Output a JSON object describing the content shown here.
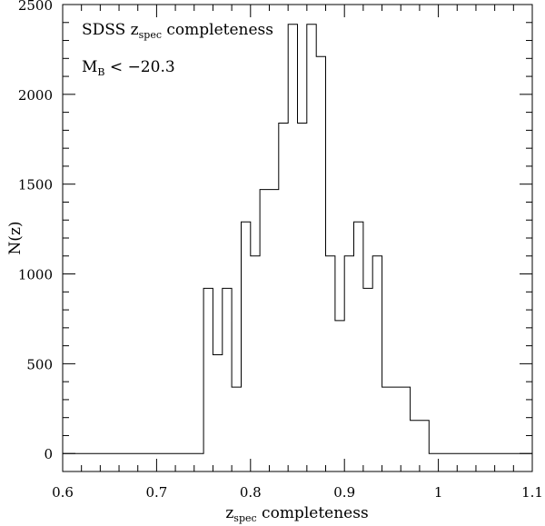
{
  "chart_data": {
    "type": "histogram",
    "xlabel": {
      "main": "z",
      "sub": "spec",
      "rest": " completeness"
    },
    "ylabel": "N(z)",
    "xlim": [
      0.6,
      1.1
    ],
    "ylim": [
      -100,
      2500
    ],
    "xticks": [
      0.6,
      0.7,
      0.8,
      0.9,
      1.0,
      1.1
    ],
    "xtick_labels": [
      "0.6",
      "0.7",
      "0.8",
      "0.9",
      "1",
      "1.1"
    ],
    "yticks": [
      0,
      500,
      1000,
      1500,
      2000,
      2500
    ],
    "ytick_labels": [
      "0",
      "500",
      "1000",
      "1500",
      "2000",
      "2500"
    ],
    "annotations": {
      "line1": {
        "main": "SDSS z",
        "sub": "spec",
        "rest": " completeness"
      },
      "line2": {
        "main": "M",
        "sub": "B",
        "rest": " < −20.3"
      }
    },
    "grid": false,
    "steps": [
      {
        "x0": 0.6,
        "x1": 0.75,
        "y": 0
      },
      {
        "x0": 0.75,
        "x1": 0.76,
        "y": 920
      },
      {
        "x0": 0.76,
        "x1": 0.77,
        "y": 550
      },
      {
        "x0": 0.77,
        "x1": 0.78,
        "y": 920
      },
      {
        "x0": 0.78,
        "x1": 0.79,
        "y": 370
      },
      {
        "x0": 0.79,
        "x1": 0.8,
        "y": 1290
      },
      {
        "x0": 0.8,
        "x1": 0.81,
        "y": 1100
      },
      {
        "x0": 0.81,
        "x1": 0.83,
        "y": 1470
      },
      {
        "x0": 0.83,
        "x1": 0.84,
        "y": 1840
      },
      {
        "x0": 0.84,
        "x1": 0.85,
        "y": 2390
      },
      {
        "x0": 0.85,
        "x1": 0.86,
        "y": 1840
      },
      {
        "x0": 0.86,
        "x1": 0.87,
        "y": 2390
      },
      {
        "x0": 0.87,
        "x1": 0.88,
        "y": 2210
      },
      {
        "x0": 0.88,
        "x1": 0.89,
        "y": 1100
      },
      {
        "x0": 0.89,
        "x1": 0.9,
        "y": 740
      },
      {
        "x0": 0.9,
        "x1": 0.91,
        "y": 1100
      },
      {
        "x0": 0.91,
        "x1": 0.92,
        "y": 1290
      },
      {
        "x0": 0.92,
        "x1": 0.93,
        "y": 920
      },
      {
        "x0": 0.93,
        "x1": 0.94,
        "y": 1100
      },
      {
        "x0": 0.94,
        "x1": 0.97,
        "y": 370
      },
      {
        "x0": 0.97,
        "x1": 0.99,
        "y": 185
      },
      {
        "x0": 0.99,
        "x1": 1.1,
        "y": 0
      }
    ]
  }
}
